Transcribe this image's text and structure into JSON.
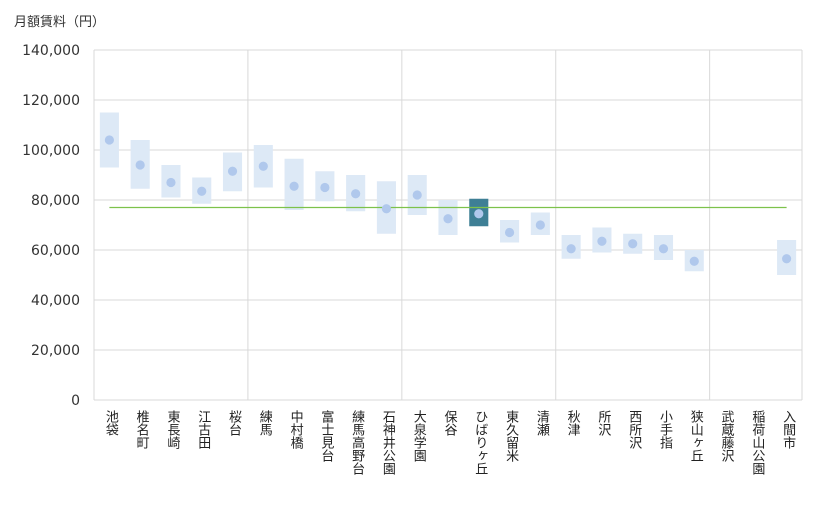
{
  "chart_data": {
    "type": "range-bar",
    "title": "",
    "ylabel": "月額賃料（円）",
    "xlabel": "",
    "ylim": [
      0,
      140000
    ],
    "yticks": [
      0,
      20000,
      40000,
      60000,
      80000,
      100000,
      120000,
      140000
    ],
    "ytick_labels": [
      "0",
      "20,000",
      "40,000",
      "60,000",
      "80,000",
      "100,000",
      "120,000",
      "140,000"
    ],
    "reference_line": {
      "value": 77000,
      "color": "#7dc24b"
    },
    "group_separators_after": [
      4,
      9,
      14,
      19
    ],
    "highlight_category": "ひばりヶ丘",
    "colors": {
      "range": "#dde9f6",
      "point": "#b0c8ec",
      "highlight_range": "#3e7f95",
      "highlight_point": "#b0c8ec",
      "grid": "#d9d9d9"
    },
    "categories": [
      "池袋",
      "椎名町",
      "東長崎",
      "江古田",
      "桜台",
      "練馬",
      "中村橋",
      "富士見台",
      "練馬高野台",
      "石神井公園",
      "大泉学園",
      "保谷",
      "ひばりヶ丘",
      "東久留米",
      "清瀬",
      "秋津",
      "所沢",
      "西所沢",
      "小手指",
      "狭山ヶ丘",
      "武蔵藤沢",
      "稲荷山公園",
      "入間市"
    ],
    "low": [
      93000,
      84500,
      81000,
      78500,
      83500,
      85000,
      76000,
      79500,
      75500,
      66500,
      74000,
      66000,
      69500,
      63000,
      66000,
      56500,
      59000,
      58500,
      56000,
      51500,
      null,
      null,
      50000
    ],
    "high": [
      115000,
      104000,
      94000,
      89000,
      99000,
      102000,
      96500,
      91500,
      90000,
      87500,
      90000,
      80000,
      80500,
      72000,
      75000,
      66000,
      69000,
      66500,
      66000,
      60000,
      null,
      null,
      64000
    ],
    "mean": [
      104000,
      94000,
      87000,
      83500,
      91500,
      93500,
      85500,
      85000,
      82500,
      76500,
      82000,
      72500,
      74500,
      67000,
      70000,
      60500,
      63500,
      62500,
      60500,
      55500,
      null,
      null,
      56500
    ]
  }
}
